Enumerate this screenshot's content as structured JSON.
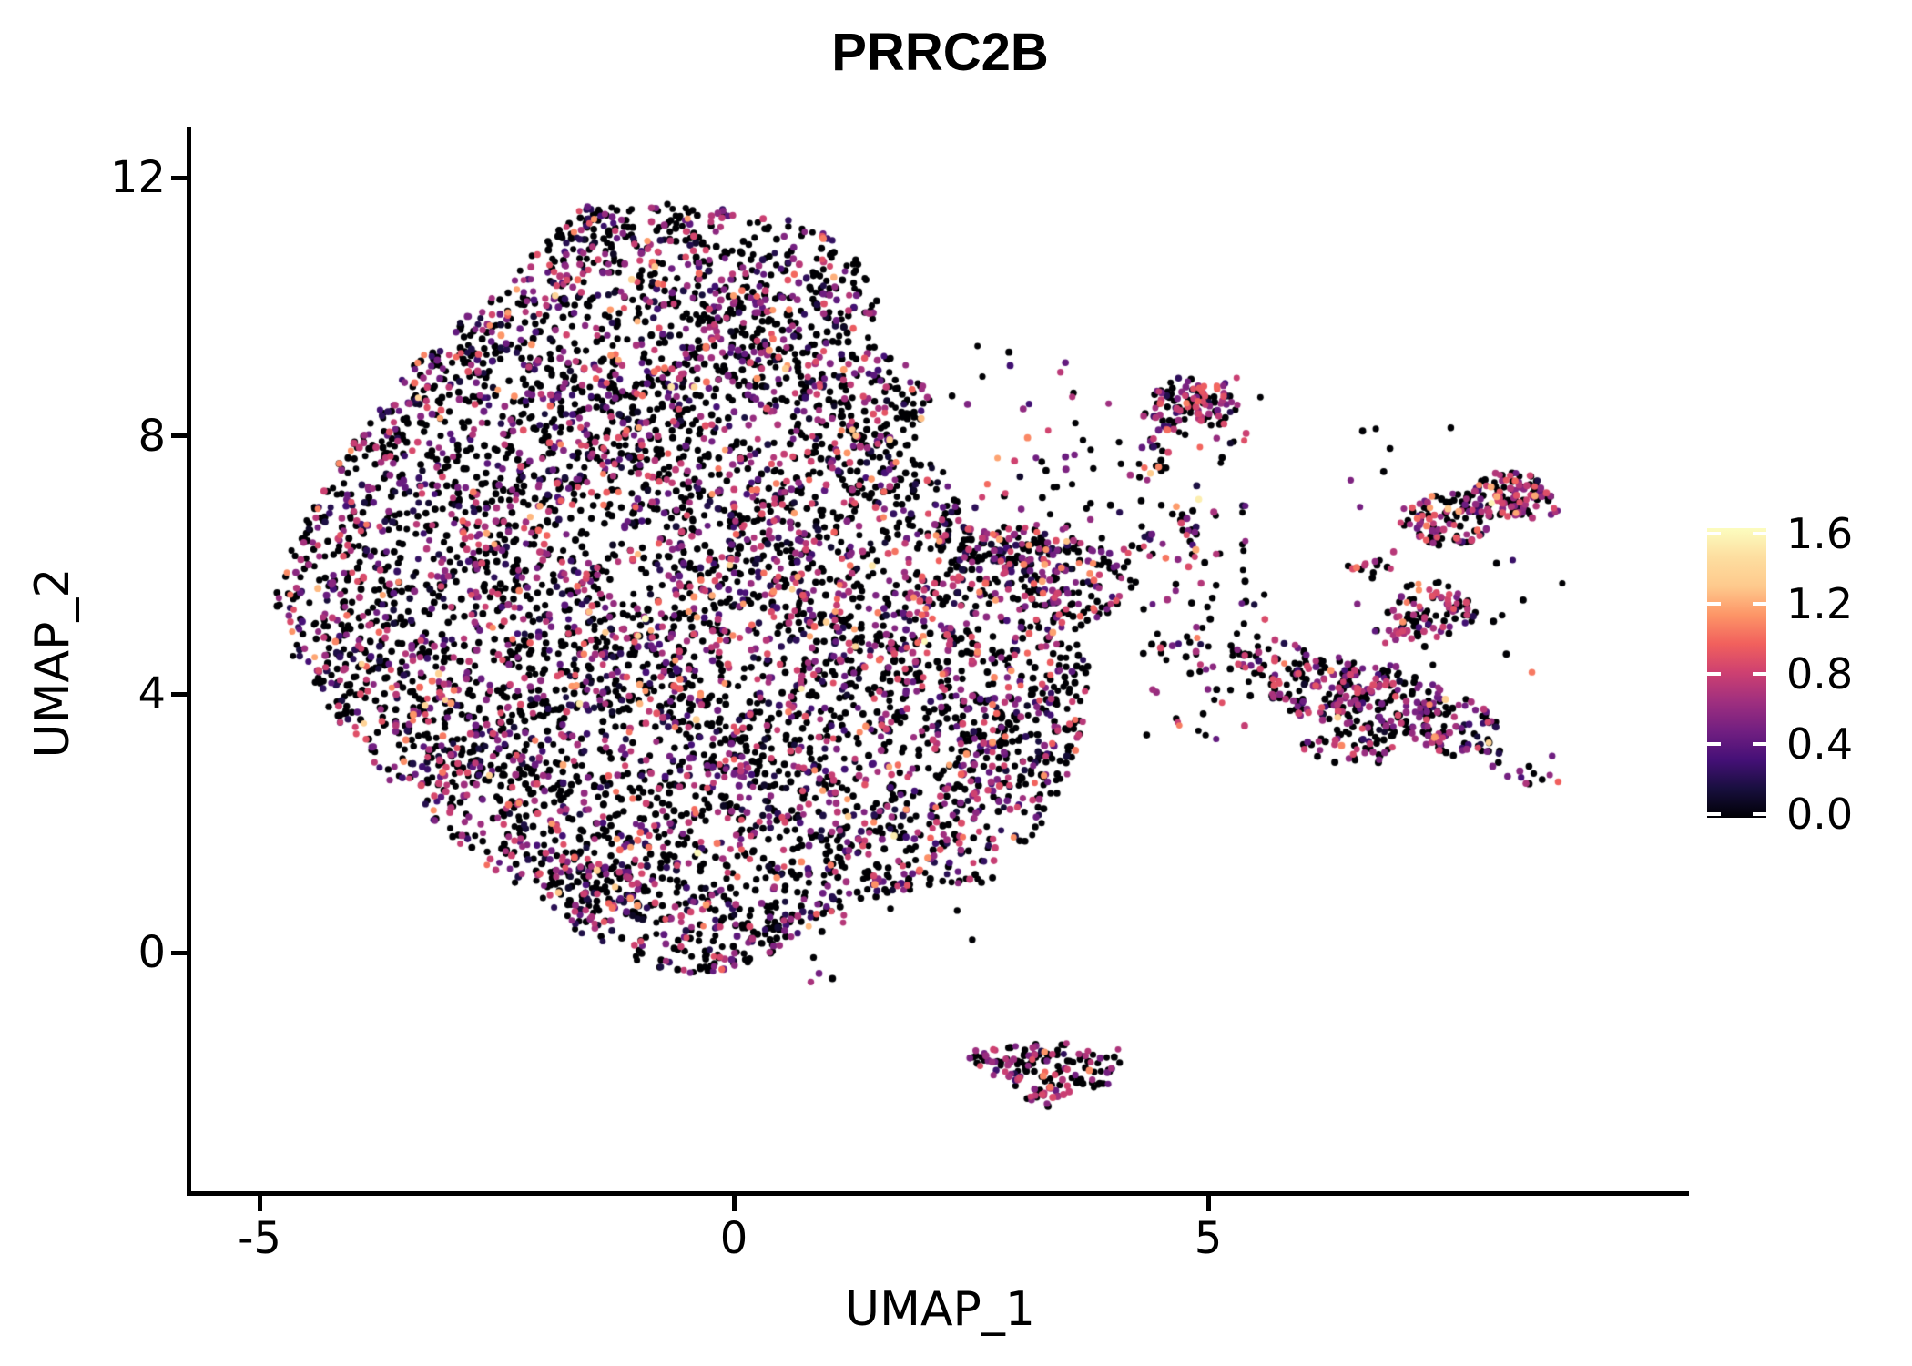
{
  "title": "PRRC2B",
  "axes": {
    "x_label": "UMAP_1",
    "y_label": "UMAP_2",
    "x_tick_labels": [
      "-5",
      "0",
      "5"
    ],
    "y_tick_labels": [
      "0",
      "4",
      "8",
      "12"
    ]
  },
  "colorbar": {
    "tick_labels": [
      "0.0",
      "0.4",
      "0.8",
      "1.2",
      "1.6"
    ]
  },
  "chart_data": {
    "type": "scatter",
    "title": "PRRC2B",
    "xlabel": "UMAP_1",
    "ylabel": "UMAP_2",
    "xlim": [
      -5.67,
      10.07
    ],
    "ylim": [
      -3.7,
      12.78
    ],
    "x_ticks": [
      -5,
      0,
      5
    ],
    "y_ticks": [
      0,
      4,
      8,
      12
    ],
    "grid": false,
    "legend_position": "right-colorbar",
    "n_points_estimate": 7900,
    "point_radius_px": 3.7,
    "seed": 1234,
    "colorbar": {
      "vmin": 0.0,
      "vmax": 1.63,
      "ticks": [
        0.0,
        0.4,
        0.8,
        1.2,
        1.6
      ],
      "colormap": "magma"
    },
    "colormap_stops": [
      [
        0.0,
        "#000004"
      ],
      [
        0.1,
        "#180f3e"
      ],
      [
        0.2,
        "#451077"
      ],
      [
        0.3,
        "#721f81"
      ],
      [
        0.4,
        "#9f2f7f"
      ],
      [
        0.5,
        "#cd4071"
      ],
      [
        0.6,
        "#f1605d"
      ],
      [
        0.7,
        "#fd9567"
      ],
      [
        0.8,
        "#feca8d"
      ],
      [
        0.9,
        "#fddea0"
      ],
      [
        1.0,
        "#fcfdbf"
      ]
    ],
    "expression_profiles": {
      "main": [
        [
          0.565,
          0,
          0
        ],
        [
          0.12,
          0.08,
          0.35
        ],
        [
          0.272,
          0.4,
          0.92
        ],
        [
          0.036,
          0.95,
          1.2
        ],
        [
          0.006,
          1.22,
          1.42
        ],
        [
          0.001,
          1.5,
          1.63
        ]
      ],
      "clustA": [
        [
          0.42,
          0,
          0
        ],
        [
          0.1,
          0.1,
          0.35
        ],
        [
          0.4,
          0.45,
          0.95
        ],
        [
          0.06,
          0.95,
          1.22
        ],
        [
          0.015,
          1.22,
          1.42
        ],
        [
          0.005,
          1.5,
          1.6
        ]
      ],
      "clustB": [
        [
          0.46,
          0,
          0
        ],
        [
          0.08,
          0.1,
          0.35
        ],
        [
          0.385,
          0.45,
          0.95
        ],
        [
          0.06,
          0.95,
          1.22
        ],
        [
          0.012,
          1.22,
          1.4
        ],
        [
          0.003,
          1.45,
          1.6
        ]
      ],
      "clustC": [
        [
          0.5,
          0,
          0
        ],
        [
          0.06,
          0.1,
          0.35
        ],
        [
          0.41,
          0.45,
          0.92
        ],
        [
          0.028,
          0.95,
          1.2
        ],
        [
          0.002,
          1.22,
          1.4
        ]
      ],
      "clustD": [
        [
          0.52,
          0,
          0
        ],
        [
          0.06,
          0.1,
          0.35
        ],
        [
          0.39,
          0.42,
          0.92
        ],
        [
          0.028,
          0.95,
          1.2
        ],
        [
          0.002,
          1.3,
          1.45
        ]
      ],
      "clustE": [
        [
          0.5,
          0,
          0
        ],
        [
          0.05,
          0.1,
          0.3
        ],
        [
          0.43,
          0.45,
          0.9
        ],
        [
          0.02,
          0.95,
          1.15
        ]
      ],
      "sparse": [
        [
          0.52,
          0,
          0
        ],
        [
          0.08,
          0.1,
          0.35
        ],
        [
          0.37,
          0.42,
          0.9
        ],
        [
          0.03,
          0.95,
          1.2
        ]
      ]
    },
    "main_blob": {
      "count": 6500,
      "profile": "main",
      "polygon": [
        [
          -1.6,
          11.55
        ],
        [
          -0.7,
          11.62
        ],
        [
          0.15,
          11.5
        ],
        [
          0.85,
          11.25
        ],
        [
          1.3,
          10.75
        ],
        [
          1.55,
          10.15
        ],
        [
          1.45,
          9.55
        ],
        [
          1.9,
          9.05
        ],
        [
          2.1,
          8.55
        ],
        [
          1.95,
          7.95
        ],
        [
          2.3,
          7.3
        ],
        [
          2.42,
          6.65
        ],
        [
          3.2,
          6.55
        ],
        [
          4.05,
          6.25
        ],
        [
          4.3,
          5.85
        ],
        [
          4.05,
          5.35
        ],
        [
          3.55,
          4.95
        ],
        [
          3.75,
          4.4
        ],
        [
          3.7,
          3.5
        ],
        [
          3.45,
          2.5
        ],
        [
          3.05,
          1.4
        ],
        [
          2.6,
          1.05
        ],
        [
          2.0,
          1.0
        ],
        [
          1.45,
          0.85
        ],
        [
          0.9,
          0.5
        ],
        [
          0.4,
          -0.05
        ],
        [
          -0.25,
          -0.38
        ],
        [
          -0.9,
          -0.2
        ],
        [
          -1.55,
          0.2
        ],
        [
          -2.05,
          0.85
        ],
        [
          -2.6,
          1.35
        ],
        [
          -3.2,
          2.05
        ],
        [
          -3.75,
          2.85
        ],
        [
          -4.25,
          3.7
        ],
        [
          -4.65,
          4.6
        ],
        [
          -4.85,
          5.5
        ],
        [
          -4.65,
          6.3
        ],
        [
          -4.4,
          7.0
        ],
        [
          -4.15,
          7.7
        ],
        [
          -3.8,
          8.35
        ],
        [
          -3.35,
          9.15
        ],
        [
          -2.85,
          9.8
        ],
        [
          -2.35,
          10.5
        ],
        [
          -1.95,
          11.05
        ]
      ]
    },
    "clusters": [
      {
        "name": "top-small-cluster",
        "profile": "clustA",
        "lobes": [
          {
            "cx": 4.72,
            "cy": 8.62,
            "rx": 0.3,
            "ry": 0.28,
            "n": 55
          },
          {
            "cx": 5.1,
            "cy": 8.5,
            "rx": 0.3,
            "ry": 0.34,
            "n": 45
          },
          {
            "cx": 4.55,
            "cy": 8.28,
            "rx": 0.25,
            "ry": 0.2,
            "n": 20
          }
        ]
      },
      {
        "name": "far-right-top-cluster",
        "profile": "clustB",
        "lobes": [
          {
            "cx": 7.5,
            "cy": 6.7,
            "rx": 0.52,
            "ry": 0.42,
            "n": 100
          },
          {
            "cx": 8.1,
            "cy": 7.1,
            "rx": 0.45,
            "ry": 0.38,
            "n": 95
          },
          {
            "cx": 8.45,
            "cy": 7.0,
            "rx": 0.3,
            "ry": 0.3,
            "n": 35
          }
        ]
      },
      {
        "name": "mid-right-clump",
        "profile": "clustC",
        "lobes": [
          {
            "cx": 7.35,
            "cy": 5.3,
            "rx": 0.48,
            "ry": 0.44,
            "n": 85
          },
          {
            "cx": 7.0,
            "cy": 4.95,
            "rx": 0.25,
            "ry": 0.2,
            "n": 12
          }
        ]
      },
      {
        "name": "bottom-right-cluster",
        "profile": "clustD",
        "lobes": [
          {
            "cx": 6.2,
            "cy": 4.1,
            "rx": 0.55,
            "ry": 0.5,
            "n": 110
          },
          {
            "cx": 6.9,
            "cy": 3.9,
            "rx": 0.6,
            "ry": 0.55,
            "n": 130
          },
          {
            "cx": 7.55,
            "cy": 3.5,
            "rx": 0.5,
            "ry": 0.45,
            "n": 90
          },
          {
            "cx": 6.5,
            "cy": 3.2,
            "rx": 0.5,
            "ry": 0.3,
            "n": 45
          },
          {
            "cx": 5.7,
            "cy": 4.5,
            "rx": 0.4,
            "ry": 0.35,
            "n": 40
          }
        ]
      },
      {
        "name": "bottom-island-cluster",
        "profile": "clustE",
        "lobes": [
          {
            "cx": 3.35,
            "cy": -1.8,
            "rx": 0.5,
            "ry": 0.42,
            "n": 72
          },
          {
            "cx": 2.85,
            "cy": -1.68,
            "rx": 0.35,
            "ry": 0.26,
            "n": 35
          },
          {
            "cx": 3.8,
            "cy": -1.8,
            "rx": 0.3,
            "ry": 0.3,
            "n": 30
          },
          {
            "cx": 3.3,
            "cy": -2.2,
            "rx": 0.3,
            "ry": 0.22,
            "n": 15
          }
        ]
      }
    ],
    "trails": [
      {
        "x1": 4.55,
        "y1": 8.0,
        "x2": 4.15,
        "y2": 7.0,
        "n": 16,
        "spread": 0.18,
        "profile": "clustA"
      },
      {
        "x1": 4.6,
        "y1": 6.9,
        "x2": 4.78,
        "y2": 6.35,
        "n": 6,
        "spread": 0.12,
        "profile": "clustA"
      },
      {
        "x1": 7.05,
        "y1": 6.25,
        "x2": 6.55,
        "y2": 5.85,
        "n": 12,
        "spread": 0.15,
        "profile": "clustB"
      },
      {
        "x1": 7.95,
        "y1": 3.05,
        "x2": 8.4,
        "y2": 2.7,
        "n": 13,
        "spread": 0.12,
        "profile": "clustD"
      },
      {
        "x1": 2.62,
        "y1": -1.55,
        "x2": 2.45,
        "y2": -1.72,
        "n": 5,
        "spread": 0.1,
        "profile": "clustE"
      }
    ],
    "sparse_regions": [
      {
        "x0": 2.5,
        "x1": 5.4,
        "y0": 5.9,
        "y1": 8.1,
        "n": 90,
        "profile": "sparse"
      },
      {
        "x0": 2.5,
        "x1": 5.2,
        "y0": 5.9,
        "y1": 6.6,
        "n": 55,
        "profile": "sparse"
      },
      {
        "x0": 4.3,
        "x1": 5.6,
        "y0": 3.3,
        "y1": 5.8,
        "n": 70,
        "profile": "sparse"
      },
      {
        "x0": 6.3,
        "x1": 8.8,
        "y0": 2.5,
        "y1": 8.2,
        "n": 30,
        "profile": "sparse"
      },
      {
        "x0": 2.3,
        "x1": 4.3,
        "y0": 8.2,
        "y1": 9.4,
        "n": 8,
        "profile": "sparse"
      },
      {
        "x0": 0.8,
        "x1": 2.6,
        "y0": -0.5,
        "y1": 0.8,
        "n": 10,
        "profile": "sparse"
      }
    ],
    "singles": [
      {
        "x": 3.05,
        "y": 8.42,
        "v": 0.6
      },
      {
        "x": 3.6,
        "y": 8.2,
        "v": 0
      },
      {
        "x": 3.95,
        "y": 8.5,
        "v": 0.65
      },
      {
        "x": 2.62,
        "y": 8.92,
        "v": 0
      },
      {
        "x": 2.3,
        "y": 8.62,
        "v": 0
      },
      {
        "x": 4.3,
        "y": 6.6,
        "v": 0
      },
      {
        "x": 4.52,
        "y": 6.33,
        "v": 0.55
      },
      {
        "x": 2.9,
        "y": 9.3,
        "v": 0
      },
      {
        "x": 8.35,
        "y": 2.62,
        "v": 0.7
      },
      {
        "x": 8.52,
        "y": 2.68,
        "v": 0
      },
      {
        "x": 8.6,
        "y": 2.75,
        "v": 0.6
      },
      {
        "x": 2.55,
        "y": -1.52,
        "v": 0.65
      },
      {
        "x": 4.05,
        "y": -1.5,
        "v": 0.7
      },
      {
        "x": 4.9,
        "y": 7.02,
        "v": 1.55
      },
      {
        "x": -0.66,
        "y": 8.76,
        "v": 1.5
      },
      {
        "x": 7.5,
        "y": 3.92,
        "v": 1.35
      },
      {
        "x": 5.3,
        "y": 8.9,
        "v": 0.8
      },
      {
        "x": 5.55,
        "y": 8.6,
        "v": 0
      },
      {
        "x": 3.28,
        "y": -1.85,
        "v": 1.0
      },
      {
        "x": 6.85,
        "y": 7.45,
        "v": 0
      },
      {
        "x": 6.6,
        "y": 6.9,
        "v": 0.5
      }
    ]
  }
}
